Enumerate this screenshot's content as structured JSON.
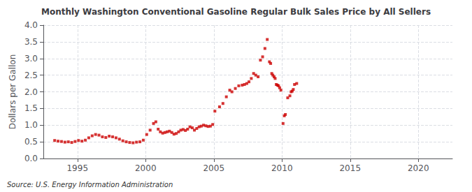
{
  "chart_data": {
    "type": "scatter",
    "title": "Monthly Washington Conventional Gasoline Regular Bulk Sales Price by All Sellers",
    "ylabel": "Dollars per Gallon",
    "source": "Source: U.S. Energy Information Administration",
    "color": "#cc0000",
    "marker": "square",
    "grid": true,
    "xlim": [
      1992.5,
      2022.5
    ],
    "ylim": [
      0.0,
      4.0
    ],
    "xticks": [
      1995,
      2000,
      2005,
      2010,
      2015,
      2020
    ],
    "yticks": [
      {
        "value": 0.0,
        "label": "0.0"
      },
      0.5,
      {
        "value": 1.0,
        "label": "1.0"
      },
      1.5,
      {
        "value": 2.0,
        "label": "2.0"
      },
      2.5,
      {
        "value": 3.0,
        "label": "3.0"
      },
      3.5,
      {
        "value": 4.0,
        "label": "4.0"
      }
    ],
    "x": [
      1993.33,
      1993.58,
      1993.83,
      1994.08,
      1994.33,
      1994.58,
      1994.83,
      1995.08,
      1995.33,
      1995.58,
      1995.83,
      1996.08,
      1996.33,
      1996.58,
      1996.83,
      1997.08,
      1997.33,
      1997.58,
      1997.83,
      1998.08,
      1998.33,
      1998.58,
      1998.83,
      1999.08,
      1999.33,
      1999.58,
      1999.83,
      2000.08,
      2000.33,
      2000.58,
      2000.75,
      2000.92,
      2001.08,
      2001.25,
      2001.42,
      2001.58,
      2001.75,
      2001.92,
      2002.08,
      2002.25,
      2002.42,
      2002.58,
      2002.75,
      2002.92,
      2003.08,
      2003.25,
      2003.42,
      2003.58,
      2003.75,
      2003.92,
      2004.08,
      2004.25,
      2004.42,
      2004.58,
      2004.75,
      2004.92,
      2005.08,
      2005.42,
      2005.67,
      2005.92,
      2006.17,
      2006.33,
      2006.58,
      2006.83,
      2007.08,
      2007.25,
      2007.42,
      2007.58,
      2007.75,
      2007.92,
      2008.08,
      2008.25,
      2008.42,
      2008.58,
      2008.75,
      2008.92,
      2009.08,
      2009.17,
      2009.25,
      2009.33,
      2009.42,
      2009.5,
      2009.58,
      2009.67,
      2009.75,
      2009.83,
      2009.92,
      2010.08,
      2010.17,
      2010.25,
      2010.42,
      2010.58,
      2010.67,
      2010.75,
      2010.83,
      2010.92,
      2011.08
    ],
    "values": [
      0.54,
      0.52,
      0.51,
      0.49,
      0.5,
      0.48,
      0.51,
      0.54,
      0.52,
      0.55,
      0.62,
      0.68,
      0.72,
      0.7,
      0.65,
      0.63,
      0.67,
      0.65,
      0.62,
      0.58,
      0.53,
      0.5,
      0.48,
      0.47,
      0.49,
      0.5,
      0.55,
      0.72,
      0.85,
      1.05,
      1.1,
      0.88,
      0.8,
      0.76,
      0.78,
      0.8,
      0.82,
      0.78,
      0.73,
      0.75,
      0.8,
      0.85,
      0.87,
      0.84,
      0.88,
      0.95,
      0.92,
      0.85,
      0.9,
      0.95,
      0.97,
      1.0,
      0.98,
      0.96,
      0.97,
      1.02,
      1.42,
      1.55,
      1.65,
      1.85,
      2.05,
      2.0,
      2.1,
      2.18,
      2.2,
      2.22,
      2.25,
      2.3,
      2.4,
      2.55,
      2.5,
      2.45,
      2.95,
      3.05,
      3.3,
      3.57,
      2.9,
      2.85,
      2.55,
      2.5,
      2.45,
      2.4,
      2.22,
      2.2,
      2.18,
      2.12,
      2.05,
      1.05,
      1.28,
      1.32,
      1.82,
      1.88,
      2.0,
      2.02,
      2.07,
      2.22,
      2.25
    ]
  }
}
